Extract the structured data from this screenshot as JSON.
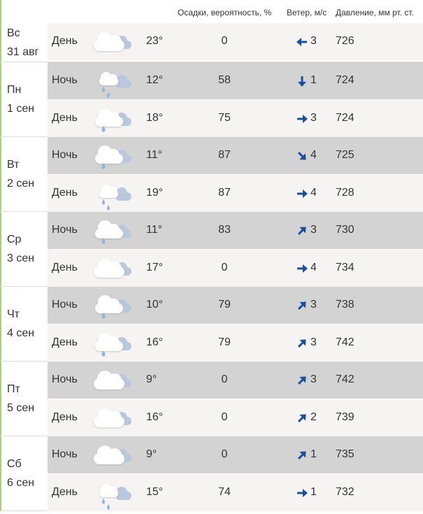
{
  "header": {
    "precip": "Осадки, вероятность, %",
    "wind": "Ветер, м/с",
    "pressure": "Давление, мм рт. ст."
  },
  "colors": {
    "arrow": "#1a4fa0",
    "night_bg": "#d3d3d3",
    "day_bg": "#f5f4f2",
    "accent_line": "#a6d27a"
  },
  "days": [
    {
      "dow": "Вс",
      "date": "31 авг",
      "rows": [
        {
          "part": "День",
          "icon": "cloudy",
          "temp": "23°",
          "precip": "0",
          "wind_dir": "west",
          "wind": "3",
          "pressure": "726"
        }
      ]
    },
    {
      "dow": "Пн",
      "date": "1 сен",
      "rows": [
        {
          "part": "Ночь",
          "icon": "rain",
          "temp": "12°",
          "precip": "58",
          "wind_dir": "south",
          "wind": "1",
          "pressure": "724"
        },
        {
          "part": "День",
          "icon": "light-rain",
          "temp": "18°",
          "precip": "75",
          "wind_dir": "east",
          "wind": "3",
          "pressure": "724"
        }
      ]
    },
    {
      "dow": "Вт",
      "date": "2 сен",
      "rows": [
        {
          "part": "Ночь",
          "icon": "light-rain",
          "temp": "11°",
          "precip": "87",
          "wind_dir": "south-east",
          "wind": "4",
          "pressure": "725"
        },
        {
          "part": "День",
          "icon": "rain",
          "temp": "19°",
          "precip": "87",
          "wind_dir": "east",
          "wind": "4",
          "pressure": "728"
        }
      ]
    },
    {
      "dow": "Ср",
      "date": "3 сен",
      "rows": [
        {
          "part": "Ночь",
          "icon": "light-rain",
          "temp": "11°",
          "precip": "83",
          "wind_dir": "north-east",
          "wind": "3",
          "pressure": "730"
        },
        {
          "part": "День",
          "icon": "cloudy",
          "temp": "17°",
          "precip": "0",
          "wind_dir": "east",
          "wind": "4",
          "pressure": "734"
        }
      ]
    },
    {
      "dow": "Чт",
      "date": "4 сен",
      "rows": [
        {
          "part": "Ночь",
          "icon": "light-rain",
          "temp": "10°",
          "precip": "79",
          "wind_dir": "north-east",
          "wind": "3",
          "pressure": "738"
        },
        {
          "part": "День",
          "icon": "light-rain",
          "temp": "16°",
          "precip": "79",
          "wind_dir": "north-east",
          "wind": "3",
          "pressure": "742"
        }
      ]
    },
    {
      "dow": "Пт",
      "date": "5 сен",
      "rows": [
        {
          "part": "Ночь",
          "icon": "cloudy",
          "temp": "9°",
          "precip": "0",
          "wind_dir": "north-east",
          "wind": "3",
          "pressure": "742"
        },
        {
          "part": "День",
          "icon": "cloudy",
          "temp": "16°",
          "precip": "0",
          "wind_dir": "north-east",
          "wind": "2",
          "pressure": "739"
        }
      ]
    },
    {
      "dow": "Сб",
      "date": "6 сен",
      "rows": [
        {
          "part": "Ночь",
          "icon": "cloudy",
          "temp": "9°",
          "precip": "0",
          "wind_dir": "north-east",
          "wind": "1",
          "pressure": "735"
        },
        {
          "part": "День",
          "icon": "rain",
          "temp": "15°",
          "precip": "74",
          "wind_dir": "east",
          "wind": "1",
          "pressure": "732"
        }
      ]
    }
  ]
}
